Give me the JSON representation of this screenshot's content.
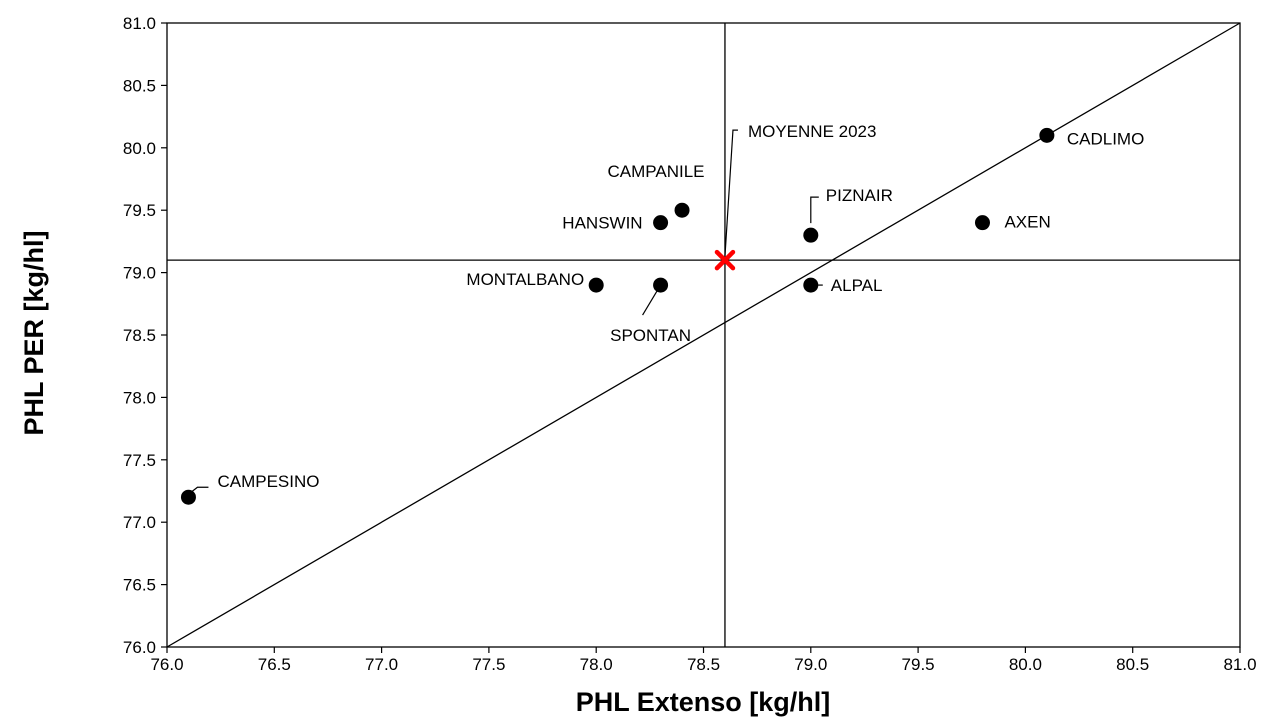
{
  "chart_data": {
    "type": "scatter",
    "title": "",
    "xlabel": "PHL Extenso [kg/hl]",
    "ylabel": "PHL PER [kg/hl]",
    "xlim": [
      76.0,
      81.0
    ],
    "ylim": [
      76.0,
      81.0
    ],
    "x_ticks": [
      "76.0",
      "76.5",
      "77.0",
      "77.5",
      "78.0",
      "78.5",
      "79.0",
      "79.5",
      "80.0",
      "80.5",
      "81.0"
    ],
    "y_ticks": [
      "76.0",
      "76.5",
      "77.0",
      "77.5",
      "78.0",
      "78.5",
      "79.0",
      "79.5",
      "80.0",
      "80.5",
      "81.0"
    ],
    "grid": false,
    "reference_lines": {
      "diagonal": [
        [
          76.0,
          76.0
        ],
        [
          81.0,
          81.0
        ]
      ],
      "vertical_x": 78.6,
      "horizontal_y": 79.1
    },
    "points": [
      {
        "name": "CAMPESINO",
        "x": 76.1,
        "y": 77.2
      },
      {
        "name": "MONTALBANO",
        "x": 78.0,
        "y": 78.9
      },
      {
        "name": "SPONTAN",
        "x": 78.3,
        "y": 78.9
      },
      {
        "name": "HANSWIN",
        "x": 78.3,
        "y": 79.4
      },
      {
        "name": "CAMPANILE",
        "x": 78.4,
        "y": 79.5
      },
      {
        "name": "PIZNAIR",
        "x": 79.0,
        "y": 79.3
      },
      {
        "name": "ALPAL",
        "x": 79.0,
        "y": 78.9
      },
      {
        "name": "AXEN",
        "x": 79.8,
        "y": 79.4
      },
      {
        "name": "CADLIMO",
        "x": 80.1,
        "y": 80.1
      }
    ],
    "mean_point": {
      "name": "MOYENNE 2023",
      "x": 78.6,
      "y": 79.1,
      "marker": "x",
      "color": "#ff0000"
    },
    "point_color": "#000000"
  }
}
